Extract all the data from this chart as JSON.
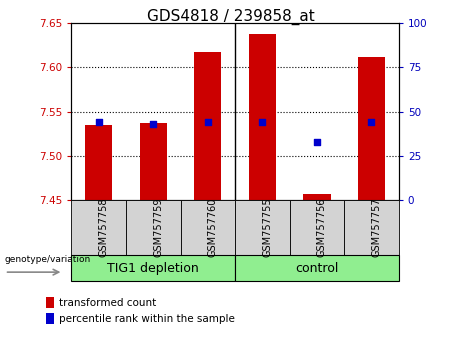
{
  "title": "GDS4818 / 239858_at",
  "samples": [
    "GSM757758",
    "GSM757759",
    "GSM757760",
    "GSM757755",
    "GSM757756",
    "GSM757757"
  ],
  "bar_bottom": 7.45,
  "transformed_counts": [
    7.535,
    7.537,
    7.617,
    7.638,
    7.457,
    7.612
  ],
  "percentile_ranks": [
    44,
    43,
    44,
    44,
    33,
    44
  ],
  "ylim_left": [
    7.45,
    7.65
  ],
  "ylim_right": [
    0,
    100
  ],
  "yticks_left": [
    7.45,
    7.5,
    7.55,
    7.6,
    7.65
  ],
  "yticks_right": [
    0,
    25,
    50,
    75,
    100
  ],
  "bar_color": "#CC0000",
  "dot_color": "#0000CC",
  "plot_bg": "#FFFFFF",
  "left_tick_color": "#CC0000",
  "right_tick_color": "#0000BB",
  "bar_width": 0.5,
  "title_fontsize": 11,
  "tick_fontsize": 7.5,
  "sample_fontsize": 7,
  "group_label_fontsize": 9,
  "legend_label1": "transformed count",
  "legend_label2": "percentile rank within the sample",
  "genotype_label": "genotype/variation",
  "dot_size": 25,
  "group_colors": [
    "#90EE90",
    "#90EE90"
  ],
  "sample_bg": "#D3D3D3",
  "group_split": 3
}
